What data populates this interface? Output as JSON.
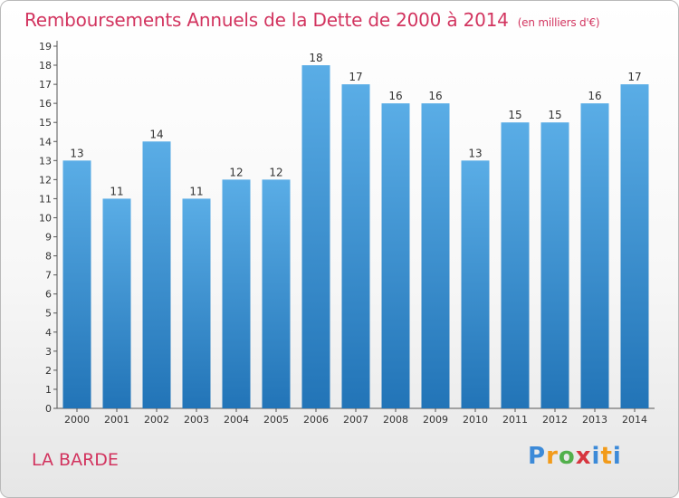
{
  "title": "Remboursements Annuels de la Dette de 2000 à 2014",
  "unit_label": "(en milliers d'€)",
  "place_name": "LA BARDE",
  "logo_text": "Proxiti",
  "colors": {
    "title": "#d2345f",
    "bar_top": "#5aade6",
    "bar_bottom": "#2274b7"
  },
  "chart_data": {
    "type": "bar",
    "title": "Remboursements Annuels de la Dette de 2000 à 2014",
    "xlabel": "",
    "ylabel": "(en milliers d'€)",
    "categories": [
      "2000",
      "2001",
      "2002",
      "2003",
      "2004",
      "2005",
      "2006",
      "2007",
      "2008",
      "2009",
      "2010",
      "2011",
      "2012",
      "2013",
      "2014"
    ],
    "values": [
      13,
      11,
      14,
      11,
      12,
      12,
      18,
      17,
      16,
      16,
      13,
      15,
      15,
      16,
      17
    ],
    "ylim": [
      0,
      19
    ],
    "yticks": [
      0,
      1,
      2,
      3,
      4,
      5,
      6,
      7,
      8,
      9,
      10,
      11,
      12,
      13,
      14,
      15,
      16,
      17,
      18,
      19
    ],
    "grid": false,
    "legend": "none"
  }
}
